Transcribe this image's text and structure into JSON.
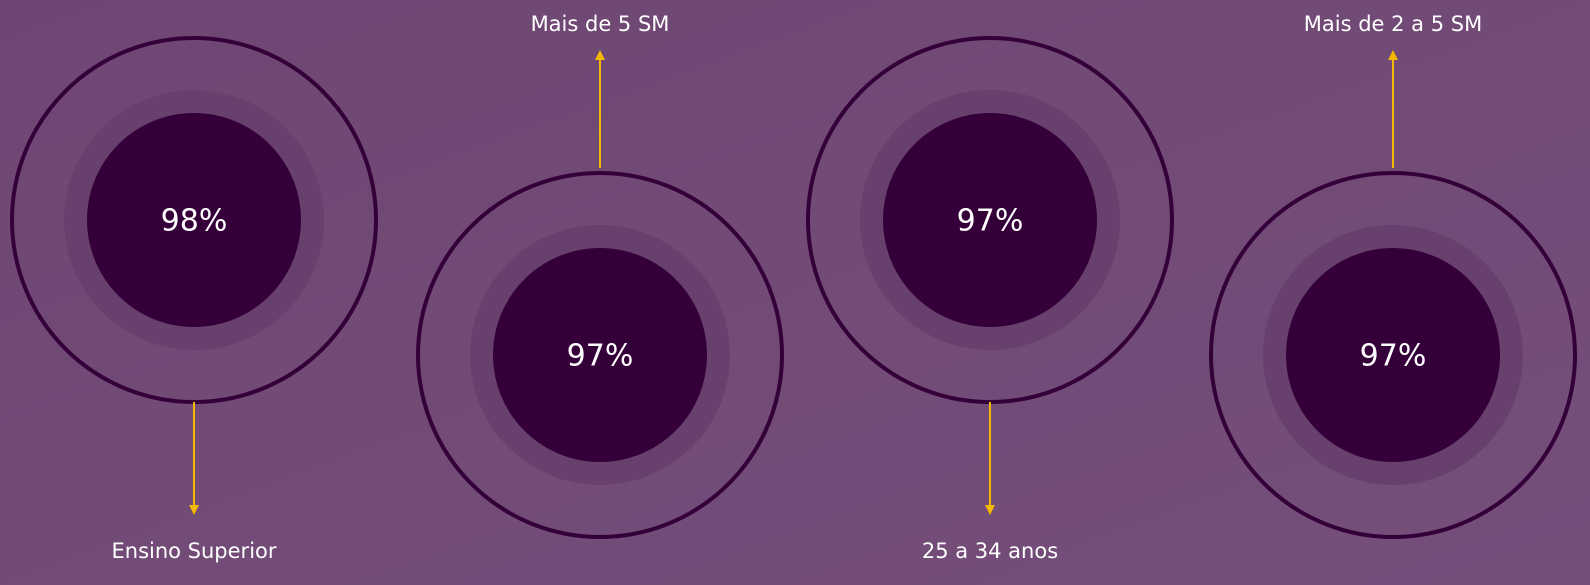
{
  "items": [
    {
      "value": "98%",
      "label": "Ensino Superior"
    },
    {
      "value": "97%",
      "label": "Mais de 5 SM"
    },
    {
      "value": "97%",
      "label": "25 a 34 anos"
    },
    {
      "value": "97%",
      "label": "Mais de 2 a 5 SM"
    }
  ]
}
